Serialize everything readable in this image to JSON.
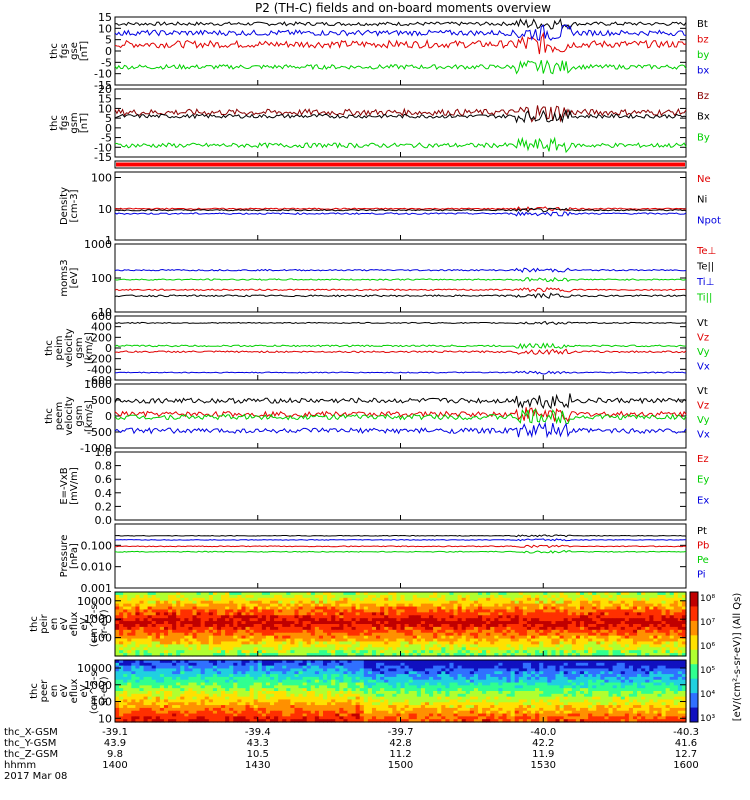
{
  "title": "P2 (TH-C) fields and on-board moments overview",
  "colors": {
    "black": "#000000",
    "red": "#e00000",
    "green": "#00d000",
    "blue": "#0000e0",
    "darkred": "#8a0000"
  },
  "chart_data": {
    "type": "line",
    "x": {
      "ticks": [
        "1400",
        "1430",
        "1500",
        "1530",
        "1600"
      ],
      "label": "hhmm",
      "date": "2017 Mar 08"
    },
    "ephemeris": [
      {
        "label": "thc_X-GSM",
        "values": [
          "-39.1",
          "-39.4",
          "-39.7",
          "-40.0",
          "-40.3"
        ]
      },
      {
        "label": "thc_Y-GSM",
        "values": [
          "43.9",
          "43.3",
          "42.8",
          "42.2",
          "41.6"
        ]
      },
      {
        "label": "thc_Z-GSM",
        "values": [
          "9.8",
          "10.5",
          "11.2",
          "11.9",
          "12.7"
        ]
      },
      {
        "label": "hhmm",
        "values": [
          "1400",
          "1430",
          "1500",
          "1530",
          "1600"
        ]
      }
    ],
    "panels": [
      {
        "id": "fgs_gse",
        "ylabel": [
          "thc",
          "fgs",
          "gse",
          "[nT]"
        ],
        "ylim": [
          -15,
          15
        ],
        "yticks": [
          {
            "v": 15,
            "t": "15"
          },
          {
            "v": 10,
            "t": "10"
          },
          {
            "v": 5,
            "t": "5"
          },
          {
            "v": 0,
            "t": "0"
          },
          {
            "v": -5,
            "t": "-5"
          },
          {
            "v": -10,
            "t": "-10"
          },
          {
            "v": -15,
            "t": "-15"
          }
        ],
        "series": [
          {
            "name": "Bt",
            "color": "black",
            "base": 12,
            "noise": 0.4
          },
          {
            "name": "bz",
            "color": "red",
            "base": 3,
            "noise": 0.8
          },
          {
            "name": "by",
            "color": "green",
            "base": -7,
            "noise": 0.5
          },
          {
            "name": "bx",
            "color": "blue",
            "base": 8,
            "noise": 0.6
          }
        ]
      },
      {
        "id": "fgs_gsm",
        "ylabel": [
          "thc",
          "fgs",
          "gsm",
          "[nT]"
        ],
        "ylim": [
          -15,
          20
        ],
        "yticks": [
          {
            "v": 20,
            "t": "20"
          },
          {
            "v": 15,
            "t": "15"
          },
          {
            "v": 10,
            "t": "10"
          },
          {
            "v": 5,
            "t": "5"
          },
          {
            "v": 0,
            "t": "0"
          },
          {
            "v": -5,
            "t": "-5"
          },
          {
            "v": -10,
            "t": "-10"
          },
          {
            "v": -15,
            "t": "-15"
          }
        ],
        "series": [
          {
            "name": "Bz",
            "color": "darkred",
            "base": 8,
            "noise": 0.8
          },
          {
            "name": "Bx",
            "color": "black",
            "base": 6,
            "noise": 0.5
          },
          {
            "name": "By",
            "color": "green",
            "base": -9,
            "noise": 0.6
          }
        ]
      },
      {
        "id": "mode_bar",
        "ylabel": [],
        "ylim": [
          0,
          1
        ],
        "yticks": [],
        "series": []
      },
      {
        "id": "density",
        "ylabel": [
          "Density",
          "[cm-3]"
        ],
        "log": true,
        "ylim": [
          1,
          150
        ],
        "yticks": [
          {
            "v": 100,
            "t": "100"
          },
          {
            "v": 10,
            "t": "10"
          },
          {
            "v": 1,
            "t": "1"
          }
        ],
        "series": [
          {
            "name": "Ne",
            "color": "red",
            "base": 10,
            "noise": 0.04
          },
          {
            "name": "Ni",
            "color": "black",
            "base": 9,
            "noise": 0.04
          },
          {
            "name": "Npot",
            "color": "blue",
            "base": 7,
            "noise": 0.05
          }
        ]
      },
      {
        "id": "temp",
        "ylabel": [
          "moms3",
          "[eV]"
        ],
        "log": true,
        "ylim": [
          10,
          1000
        ],
        "yticks": [
          {
            "v": 1000,
            "t": "1000"
          },
          {
            "v": 100,
            "t": "100"
          },
          {
            "v": 10,
            "t": "10"
          }
        ],
        "series": [
          {
            "name": "Te⊥",
            "color": "red",
            "base": 45,
            "noise": 0.04
          },
          {
            "name": "Te||",
            "color": "black",
            "base": 30,
            "noise": 0.05
          },
          {
            "name": "Ti⊥",
            "color": "blue",
            "base": 170,
            "noise": 0.04
          },
          {
            "name": "Ti||",
            "color": "green",
            "base": 90,
            "noise": 0.04
          }
        ]
      },
      {
        "id": "peim_vel",
        "ylabel": [
          "thc",
          "peim",
          "velocity",
          "gsm",
          "[km/s]"
        ],
        "ylim": [
          -600,
          600
        ],
        "yticks": [
          {
            "v": 600,
            "t": "600"
          },
          {
            "v": 400,
            "t": "400"
          },
          {
            "v": 200,
            "t": "200"
          },
          {
            "v": 0,
            "t": "0"
          },
          {
            "v": -200,
            "t": "-200"
          },
          {
            "v": -400,
            "t": "-400"
          },
          {
            "v": -600,
            "t": "-600"
          }
        ],
        "series": [
          {
            "name": "Vt",
            "color": "black",
            "base": 470,
            "noise": 5
          },
          {
            "name": "Vz",
            "color": "red",
            "base": -70,
            "noise": 8
          },
          {
            "name": "Vy",
            "color": "green",
            "base": 40,
            "noise": 8
          },
          {
            "name": "Vx",
            "color": "blue",
            "base": -460,
            "noise": 5
          }
        ]
      },
      {
        "id": "peem_vel",
        "ylabel": [
          "thc",
          "peem",
          "velocity",
          "gsm",
          "[km/s]"
        ],
        "ylim": [
          -1000,
          1000
        ],
        "yticks": [
          {
            "v": 1000,
            "t": "1000"
          },
          {
            "v": 500,
            "t": "500"
          },
          {
            "v": 0,
            "t": "0"
          },
          {
            "v": -500,
            "t": "-500"
          },
          {
            "v": -1000,
            "t": "-1000"
          }
        ],
        "series": [
          {
            "name": "Vt",
            "color": "black",
            "base": 480,
            "noise": 40
          },
          {
            "name": "Vz",
            "color": "red",
            "base": 60,
            "noise": 40
          },
          {
            "name": "Vy",
            "color": "green",
            "base": -30,
            "noise": 40
          },
          {
            "name": "Vx",
            "color": "blue",
            "base": -460,
            "noise": 40
          }
        ]
      },
      {
        "id": "efield",
        "ylabel": [
          "E=-VxB",
          "[mV/m]"
        ],
        "ylim": [
          0,
          1
        ],
        "yticks": [
          {
            "v": 1,
            "t": "1.0"
          },
          {
            "v": 0.8,
            "t": "0.8"
          },
          {
            "v": 0.6,
            "t": "0.6"
          },
          {
            "v": 0.4,
            "t": "0.4"
          },
          {
            "v": 0.2,
            "t": "0.2"
          },
          {
            "v": 0,
            "t": "0.0"
          }
        ],
        "series": [
          {
            "name": "Ez",
            "color": "red"
          },
          {
            "name": "Ey",
            "color": "green"
          },
          {
            "name": "Ex",
            "color": "blue"
          }
        ]
      },
      {
        "id": "pressure",
        "ylabel": [
          "Pressure",
          "[nPa]"
        ],
        "log": true,
        "ylim": [
          0.001,
          1
        ],
        "yticks": [
          {
            "v": 0.1,
            "t": "0.100"
          },
          {
            "v": 0.01,
            "t": "0.010"
          },
          {
            "v": 0.001,
            "t": "0.001"
          }
        ],
        "series": [
          {
            "name": "Pt",
            "color": "black",
            "base": 0.28,
            "noise": 0.03
          },
          {
            "name": "Pb",
            "color": "red",
            "base": 0.09,
            "noise": 0.04
          },
          {
            "name": "Pe",
            "color": "green",
            "base": 0.05,
            "noise": 0.04
          },
          {
            "name": "Pi",
            "color": "blue",
            "base": 0.18,
            "noise": 0.03
          }
        ]
      },
      {
        "id": "peir",
        "ylabel": [
          "thc",
          "peir",
          "en",
          "eV",
          "eflux",
          "eV",
          "(cm^2-s-",
          "sr-eV)"
        ],
        "log": true,
        "ylim": [
          10,
          30000
        ],
        "yticks": [
          {
            "v": 10000,
            "t": "10000"
          },
          {
            "v": 1000,
            "t": "1000"
          },
          {
            "v": 100,
            "t": "100"
          }
        ],
        "series": []
      },
      {
        "id": "peer",
        "ylabel": [
          "thc",
          "peer",
          "en",
          "eV",
          "eflux",
          "eV",
          "(cm^2-s-",
          "sr-eV)"
        ],
        "log": true,
        "ylim": [
          6,
          30000
        ],
        "yticks": [
          {
            "v": 10000,
            "t": "10000"
          },
          {
            "v": 1000,
            "t": "1000"
          },
          {
            "v": 100,
            "t": "100"
          },
          {
            "v": 10,
            "t": "10"
          }
        ],
        "series": []
      }
    ],
    "colorbar": {
      "ticks": [
        "10⁸",
        "10⁷",
        "10⁶",
        "10⁵",
        "10⁴",
        "10³"
      ],
      "label": "[eV/(cm²-s-sr-eV)] (All Qs)"
    }
  }
}
